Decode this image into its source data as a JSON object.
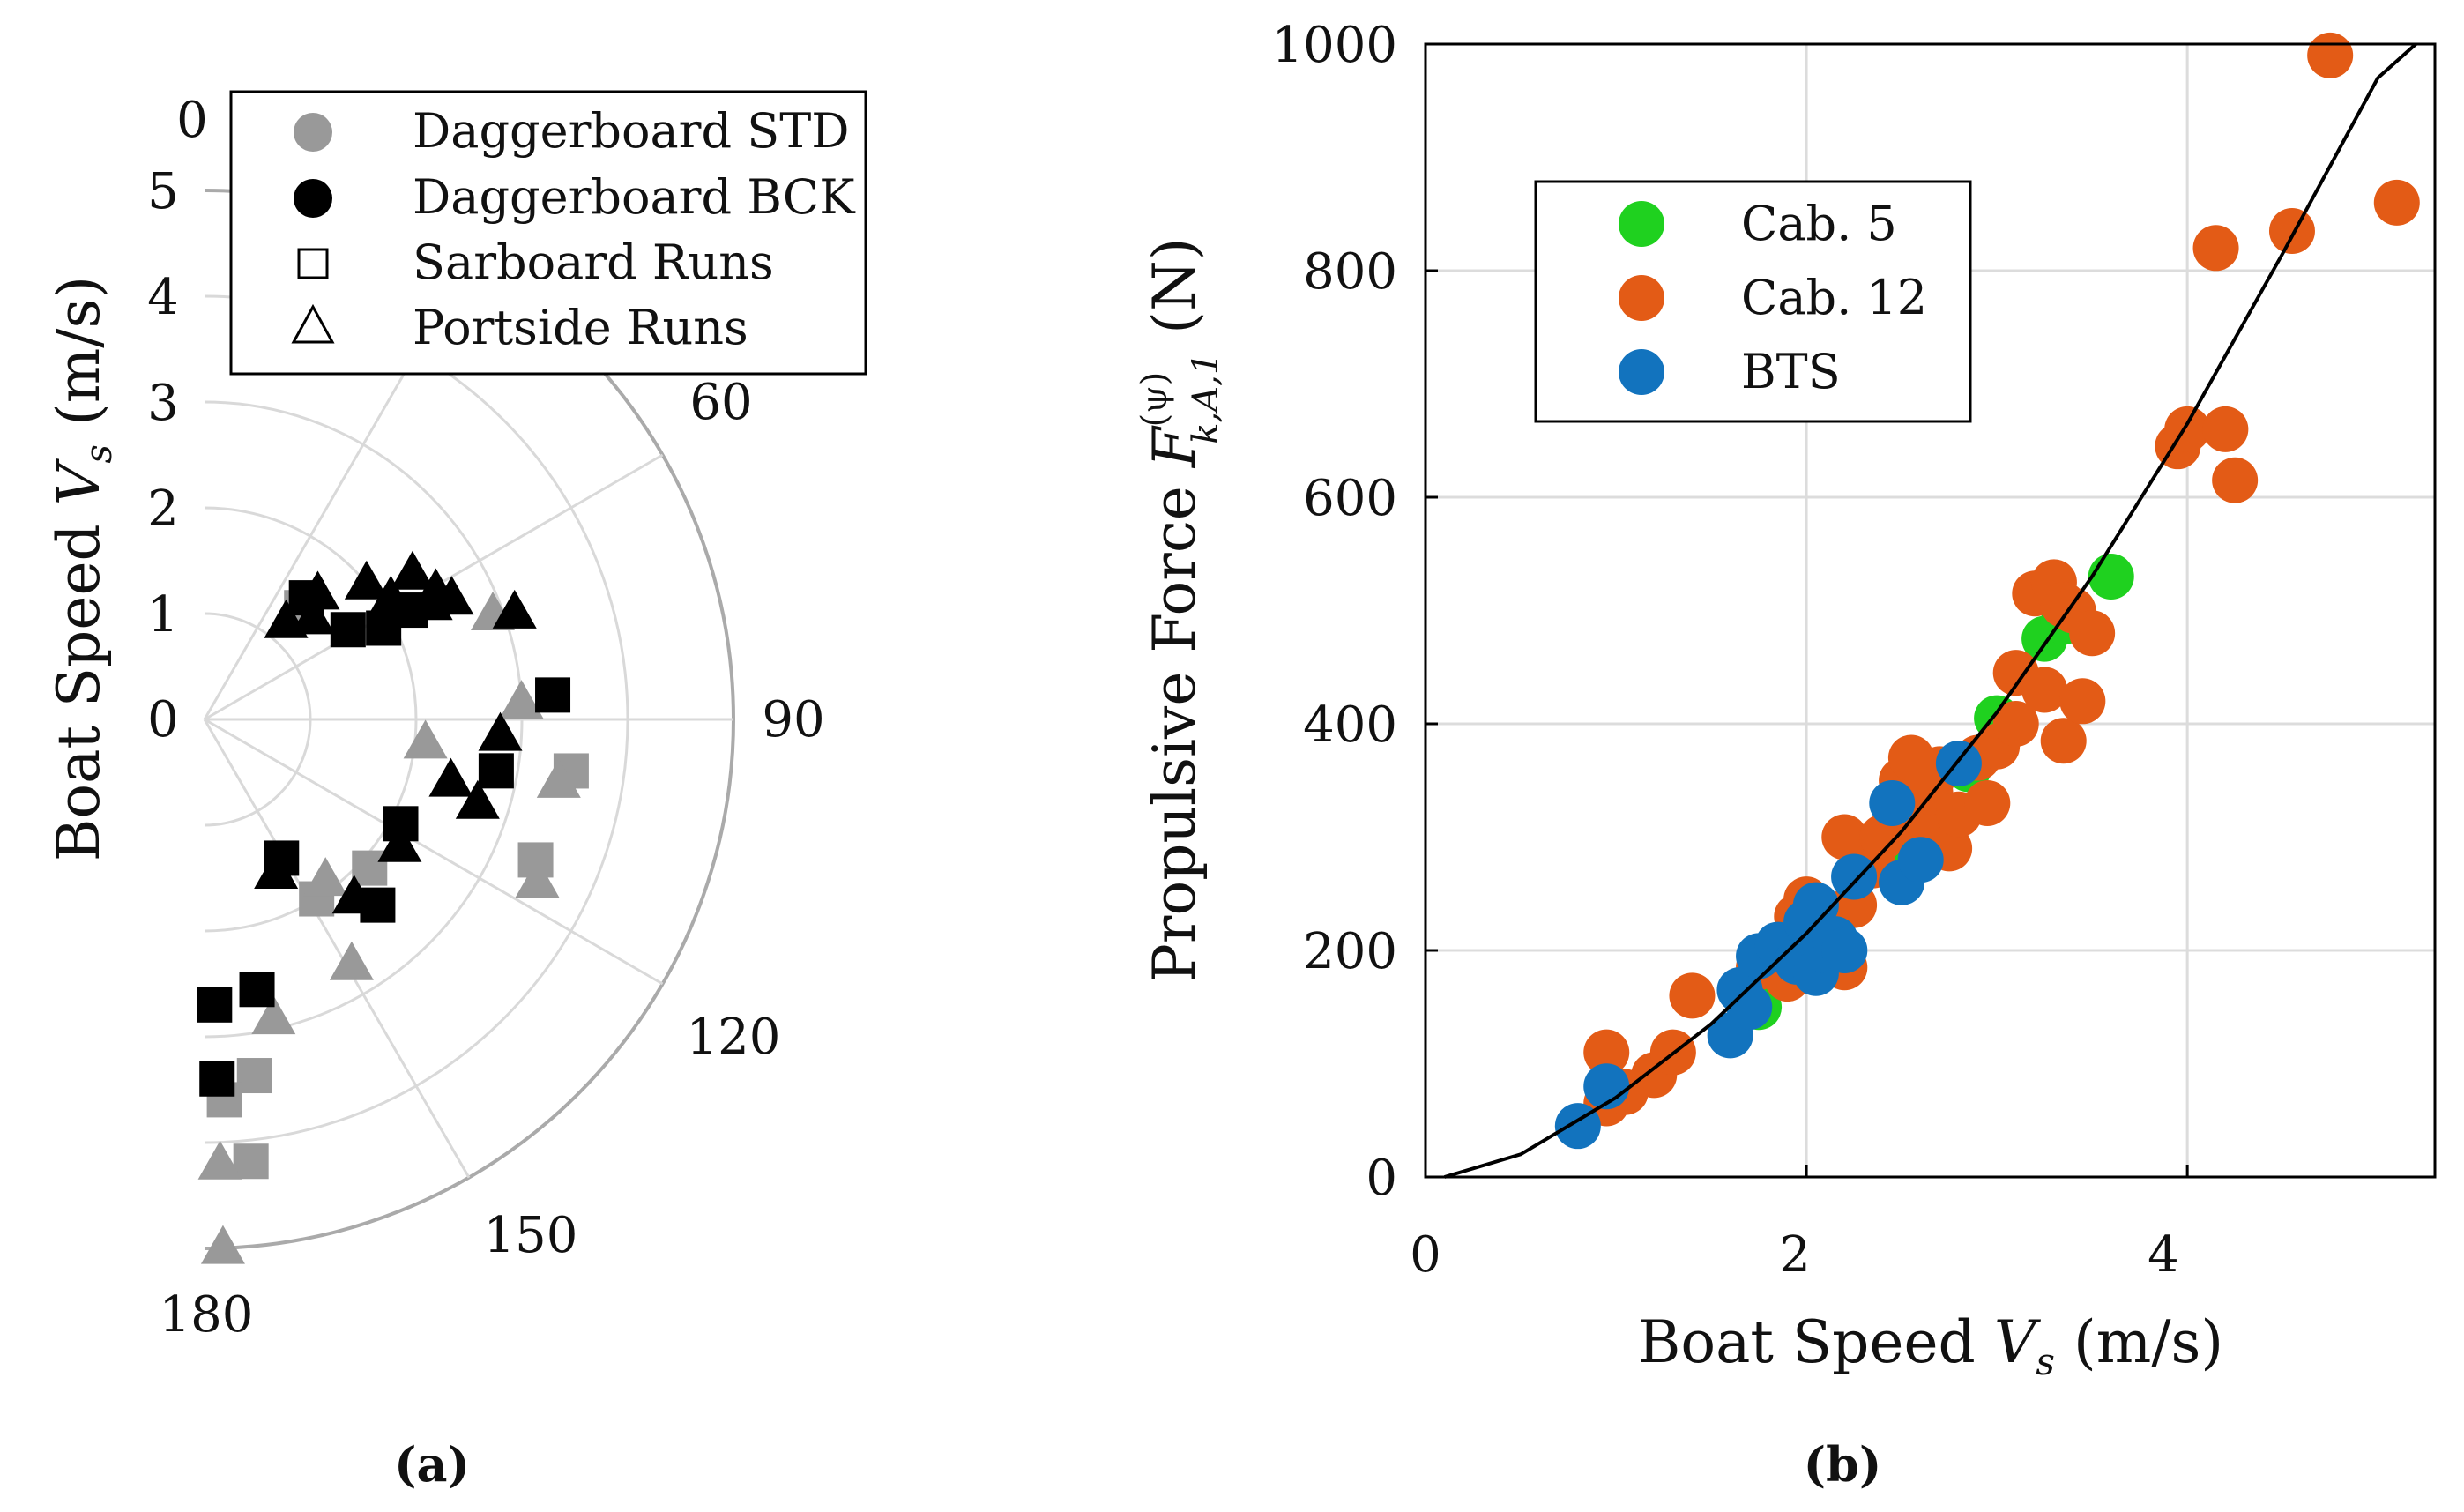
{
  "chart_data": [
    {
      "type": "polar-scatter",
      "panel_label": "(a)",
      "radial_axis_label": "Boat Speed Vs (m/s)",
      "radial_axis_label_main": "Boat Speed ",
      "radial_axis_label_symbol": "V",
      "radial_axis_label_sub": "s",
      "radial_axis_label_unit": " (m/s)",
      "radial_ticks": [
        "0",
        "1",
        "2",
        "3",
        "4",
        "5"
      ],
      "radial_range": [
        0,
        5
      ],
      "angle_ticks": [
        "0",
        "60",
        "90",
        "120",
        "150",
        "180"
      ],
      "angular_range_deg": [
        0,
        180
      ],
      "grid": true,
      "legend": [
        {
          "label": "Daggerboard STD",
          "marker": "circle",
          "color": "#999999"
        },
        {
          "label": "Daggerboard BCK",
          "marker": "circle",
          "color": "#000000"
        },
        {
          "label": "Sarboard Runs",
          "marker": "square-open",
          "color": "#000000"
        },
        {
          "label": "Portside Runs",
          "marker": "triangle-open",
          "color": "#000000"
        }
      ],
      "series": [
        {
          "name": "Daggerboard STD / Sarboard Runs",
          "color": "#999999",
          "marker": "square",
          "points": [
            {
              "angle": 41,
              "speed": 1.4
            },
            {
              "angle": 98,
              "speed": 3.5
            },
            {
              "angle": 113,
              "speed": 3.4
            },
            {
              "angle": 132,
              "speed": 2.1
            },
            {
              "angle": 148,
              "speed": 2.0
            },
            {
              "angle": 172,
              "speed": 3.4
            },
            {
              "angle": 174,
              "speed": 4.2
            },
            {
              "angle": 177,
              "speed": 3.6
            }
          ]
        },
        {
          "name": "Daggerboard STD / Portside Runs",
          "color": "#999999",
          "marker": "triangle",
          "points": [
            {
              "angle": 70,
              "speed": 2.9
            },
            {
              "angle": 87,
              "speed": 3.0
            },
            {
              "angle": 96,
              "speed": 2.1
            },
            {
              "angle": 100,
              "speed": 3.4
            },
            {
              "angle": 116,
              "speed": 3.5
            },
            {
              "angle": 143,
              "speed": 1.9
            },
            {
              "angle": 149,
              "speed": 2.7
            },
            {
              "angle": 167,
              "speed": 2.9
            },
            {
              "angle": 178,
              "speed": 4.2
            },
            {
              "angle": 178,
              "speed": 5.0
            }
          ]
        },
        {
          "name": "Daggerboard BCK / Sarboard Runs",
          "color": "#000000",
          "marker": "square",
          "points": [
            {
              "angle": 40,
              "speed": 1.5
            },
            {
              "angle": 58,
              "speed": 1.6
            },
            {
              "angle": 63,
              "speed": 1.9
            },
            {
              "angle": 62,
              "speed": 2.2
            },
            {
              "angle": 86,
              "speed": 3.3
            },
            {
              "angle": 100,
              "speed": 2.8
            },
            {
              "angle": 118,
              "speed": 2.1
            },
            {
              "angle": 137,
              "speed": 2.4
            },
            {
              "angle": 151,
              "speed": 1.5
            },
            {
              "angle": 169,
              "speed": 2.6
            },
            {
              "angle": 178,
              "speed": 2.7
            },
            {
              "angle": 178,
              "speed": 3.4
            }
          ]
        },
        {
          "name": "Daggerboard BCK / Portside Runs",
          "color": "#000000",
          "marker": "triangle",
          "points": [
            {
              "angle": 40,
              "speed": 1.2
            },
            {
              "angle": 47,
              "speed": 1.4
            },
            {
              "angle": 42,
              "speed": 1.6
            },
            {
              "angle": 50,
              "speed": 2.0
            },
            {
              "angle": 57,
              "speed": 2.1
            },
            {
              "angle": 55,
              "speed": 2.4
            },
            {
              "angle": 61,
              "speed": 2.5
            },
            {
              "angle": 63,
              "speed": 2.4
            },
            {
              "angle": 64,
              "speed": 2.6
            },
            {
              "angle": 71,
              "speed": 3.1
            },
            {
              "angle": 93,
              "speed": 2.8
            },
            {
              "angle": 104,
              "speed": 2.4
            },
            {
              "angle": 107,
              "speed": 2.7
            },
            {
              "angle": 123,
              "speed": 2.2
            },
            {
              "angle": 140,
              "speed": 2.2
            },
            {
              "angle": 155,
              "speed": 1.6
            }
          ]
        }
      ]
    },
    {
      "type": "scatter",
      "panel_label": "(b)",
      "xlabel": "Boat Speed Vs (m/s)",
      "xlabel_main": "Boat Speed ",
      "xlabel_symbol": "V",
      "xlabel_sub": "s",
      "xlabel_unit": " (m/s)",
      "ylabel": "Propulsive Force F(ψ)k,A,1 (N)",
      "ylabel_main": "Propulsive Force ",
      "ylabel_symbol": "F",
      "ylabel_sup": "(ψ)",
      "ylabel_sub": "k,A,1",
      "ylabel_unit": " (N)",
      "xlim": [
        0,
        5.3
      ],
      "ylim": [
        0,
        1000
      ],
      "xticks": [
        0,
        2,
        4
      ],
      "yticks": [
        0,
        200,
        400,
        600,
        800,
        1000
      ],
      "grid": true,
      "legend_position": "upper-left",
      "fit_curve": {
        "name": "fit",
        "color": "#000000",
        "points": [
          [
            0.1,
            0
          ],
          [
            0.5,
            20
          ],
          [
            1.0,
            70
          ],
          [
            1.5,
            135
          ],
          [
            2.0,
            215
          ],
          [
            2.5,
            305
          ],
          [
            3.0,
            410
          ],
          [
            3.5,
            530
          ],
          [
            4.0,
            665
          ],
          [
            4.5,
            815
          ],
          [
            5.0,
            970
          ],
          [
            5.2,
            1000
          ]
        ]
      },
      "series": [
        {
          "name": "Cab. 5",
          "color": "#1fd11f",
          "points": [
            [
              1.75,
              150
            ],
            [
              2.1,
              210
            ],
            [
              2.5,
              290
            ],
            [
              2.85,
              360
            ],
            [
              3.0,
              405
            ],
            [
              3.25,
              475
            ],
            [
              3.35,
              490
            ],
            [
              3.6,
              530
            ]
          ]
        },
        {
          "name": "Cab. 12",
          "color": "#e35b16",
          "points": [
            [
              0.95,
              110
            ],
            [
              0.95,
              65
            ],
            [
              1.05,
              75
            ],
            [
              1.2,
              90
            ],
            [
              1.3,
              110
            ],
            [
              1.4,
              160
            ],
            [
              1.75,
              185
            ],
            [
              1.9,
              175
            ],
            [
              1.95,
              230
            ],
            [
              2.0,
              245
            ],
            [
              2.1,
              215
            ],
            [
              2.2,
              185
            ],
            [
              2.25,
              240
            ],
            [
              2.2,
              300
            ],
            [
              2.35,
              275
            ],
            [
              2.4,
              300
            ],
            [
              2.5,
              350
            ],
            [
              2.55,
              370
            ],
            [
              2.6,
              310
            ],
            [
              2.65,
              340
            ],
            [
              2.7,
              360
            ],
            [
              2.75,
              290
            ],
            [
              2.8,
              320
            ],
            [
              2.9,
              370
            ],
            [
              2.95,
              330
            ],
            [
              3.0,
              380
            ],
            [
              3.1,
              445
            ],
            [
              3.1,
              400
            ],
            [
              3.2,
              515
            ],
            [
              3.25,
              430
            ],
            [
              3.3,
              525
            ],
            [
              3.35,
              385
            ],
            [
              3.35,
              505
            ],
            [
              3.4,
              500
            ],
            [
              3.45,
              420
            ],
            [
              3.5,
              480
            ],
            [
              3.95,
              645
            ],
            [
              4.0,
              660
            ],
            [
              4.2,
              660
            ],
            [
              4.25,
              615
            ],
            [
              4.15,
              820
            ],
            [
              4.55,
              835
            ],
            [
              4.75,
              990
            ],
            [
              5.1,
              860
            ]
          ]
        },
        {
          "name": "BTS",
          "color": "#1273be",
          "points": [
            [
              0.8,
              45
            ],
            [
              0.95,
              80
            ],
            [
              1.6,
              125
            ],
            [
              1.65,
              165
            ],
            [
              1.7,
              150
            ],
            [
              1.75,
              195
            ],
            [
              1.85,
              205
            ],
            [
              1.95,
              190
            ],
            [
              2.0,
              225
            ],
            [
              2.05,
              240
            ],
            [
              2.05,
              180
            ],
            [
              2.1,
              200
            ],
            [
              2.15,
              210
            ],
            [
              2.2,
              200
            ],
            [
              2.25,
              265
            ],
            [
              2.45,
              330
            ],
            [
              2.5,
              260
            ],
            [
              2.6,
              280
            ],
            [
              2.8,
              365
            ]
          ]
        }
      ]
    }
  ]
}
